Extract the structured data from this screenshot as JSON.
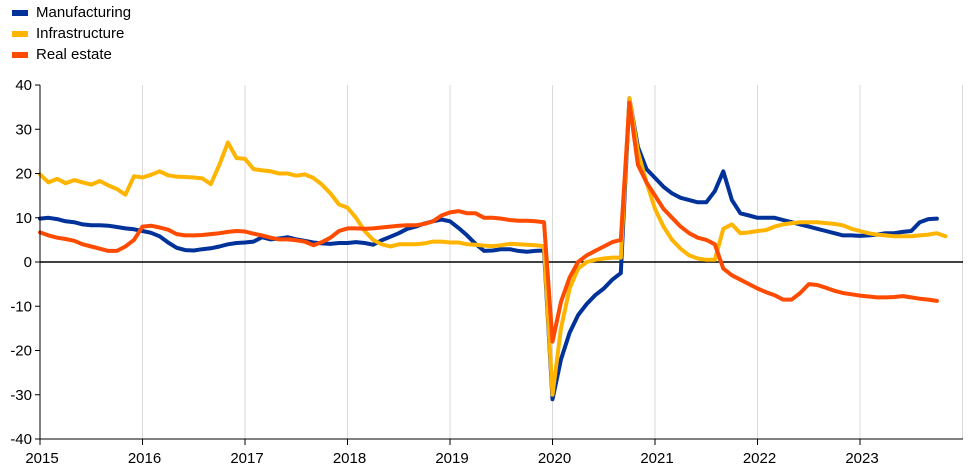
{
  "chart_data": {
    "type": "line",
    "x_start": "2015-01",
    "x_step": "month",
    "x_ticks": [
      "2015",
      "2016",
      "2017",
      "2018",
      "2019",
      "2020",
      "2021",
      "2022",
      "2023"
    ],
    "ylim": [
      -40,
      40
    ],
    "y_ticks": [
      "40",
      "30",
      "20",
      "10",
      "0",
      "-10",
      "-20",
      "-30",
      "-40"
    ],
    "grid": "vertical",
    "legend_position": "top-left",
    "series": [
      {
        "name": "Manufacturing",
        "color": "#003299",
        "values": [
          9.8,
          10,
          9.7,
          9.2,
          9.0,
          8.5,
          8.3,
          8.3,
          8.2,
          7.9,
          7.6,
          7.4,
          7.0,
          6.6,
          5.8,
          4.4,
          3.2,
          2.7,
          2.6,
          2.9,
          3.1,
          3.5,
          4.0,
          4.3,
          4.4,
          4.6,
          5.6,
          5.1,
          5.3,
          5.6,
          5.1,
          4.8,
          4.4,
          4.2,
          4.1,
          4.3,
          4.3,
          4.5,
          4.3,
          3.9,
          4.9,
          5.7,
          6.5,
          7.5,
          8.0,
          8.7,
          9.2,
          9.6,
          9.2,
          7.7,
          6.0,
          4.1,
          2.5,
          2.6,
          2.9,
          2.9,
          2.5,
          2.3,
          2.5,
          2.6,
          -31,
          -22,
          -16,
          -12,
          -9.5,
          -7.5,
          -6,
          -4,
          -2.5,
          37,
          26,
          21,
          19,
          17,
          15.5,
          14.5,
          14,
          13.5,
          13.5,
          16,
          20.5,
          14,
          11,
          10.5,
          10,
          10,
          10,
          9.5,
          9,
          8.5,
          8,
          7.5,
          7,
          6.5,
          6,
          6,
          5.9,
          6,
          6.2,
          6.5,
          6.5,
          6.8,
          7,
          9,
          9.7,
          9.8
        ]
      },
      {
        "name": "Infrastructure",
        "color": "#FFB400",
        "values": [
          19.8,
          18,
          18.8,
          17.8,
          18.5,
          18,
          17.5,
          18.3,
          17.3,
          16.5,
          15.2,
          19.4,
          19.1,
          19.7,
          20.5,
          19.6,
          19.3,
          19.2,
          19.1,
          18.9,
          17.6,
          22,
          27,
          23.5,
          23.3,
          21,
          20.7,
          20.5,
          20,
          20,
          19.5,
          19.8,
          19,
          17.5,
          15.5,
          13,
          12.3,
          10,
          7,
          5,
          4,
          3.5,
          4,
          4,
          4,
          4.2,
          4.6,
          4.6,
          4.4,
          4.4,
          4,
          3.9,
          3.7,
          3.6,
          3.8,
          4.1,
          4,
          3.9,
          3.8,
          3.6,
          -30,
          -15,
          -6,
          -1.5,
          0,
          0.5,
          0.8,
          1,
          1,
          37,
          25,
          18,
          12,
          8,
          5,
          3,
          1.5,
          0.8,
          0.5,
          0.5,
          7.5,
          8.5,
          6.5,
          6.7,
          7,
          7.2,
          8,
          8.5,
          8.8,
          9,
          9,
          9,
          8.8,
          8.6,
          8.3,
          7.5,
          7,
          6.5,
          6.2,
          6,
          5.8,
          5.8,
          5.8,
          6,
          6.2,
          6.5,
          5.8
        ]
      },
      {
        "name": "Real estate",
        "color": "#FF4B00",
        "values": [
          6.7,
          6,
          5.5,
          5.2,
          4.8,
          4,
          3.5,
          3.0,
          2.5,
          2.5,
          3.5,
          5,
          8,
          8.2,
          7.8,
          7.3,
          6.3,
          6,
          6,
          6.1,
          6.3,
          6.5,
          6.8,
          7,
          6.9,
          6.4,
          6.0,
          5.5,
          5.1,
          5.1,
          4.9,
          4.6,
          3.8,
          4.5,
          5.5,
          7,
          7.6,
          7.6,
          7.5,
          7.6,
          7.8,
          8,
          8.2,
          8.3,
          8.3,
          8.6,
          9.2,
          10.5,
          11.2,
          11.5,
          11,
          11,
          10,
          10,
          9.8,
          9.5,
          9.3,
          9.3,
          9.2,
          9.0,
          -18,
          -9,
          -3.5,
          0,
          1.5,
          2.5,
          3.5,
          4.5,
          5,
          36,
          22,
          18,
          15,
          12,
          10,
          8,
          6.5,
          5.5,
          5,
          4,
          -1.5,
          -3,
          -4,
          -5,
          -6,
          -6.8,
          -7.5,
          -8.5,
          -8.5,
          -7,
          -5,
          -5.2,
          -5.8,
          -6.5,
          -7,
          -7.3,
          -7.6,
          -7.8,
          -8,
          -8,
          -7.9,
          -7.7,
          -8,
          -8.3,
          -8.5,
          -8.8
        ]
      }
    ]
  }
}
